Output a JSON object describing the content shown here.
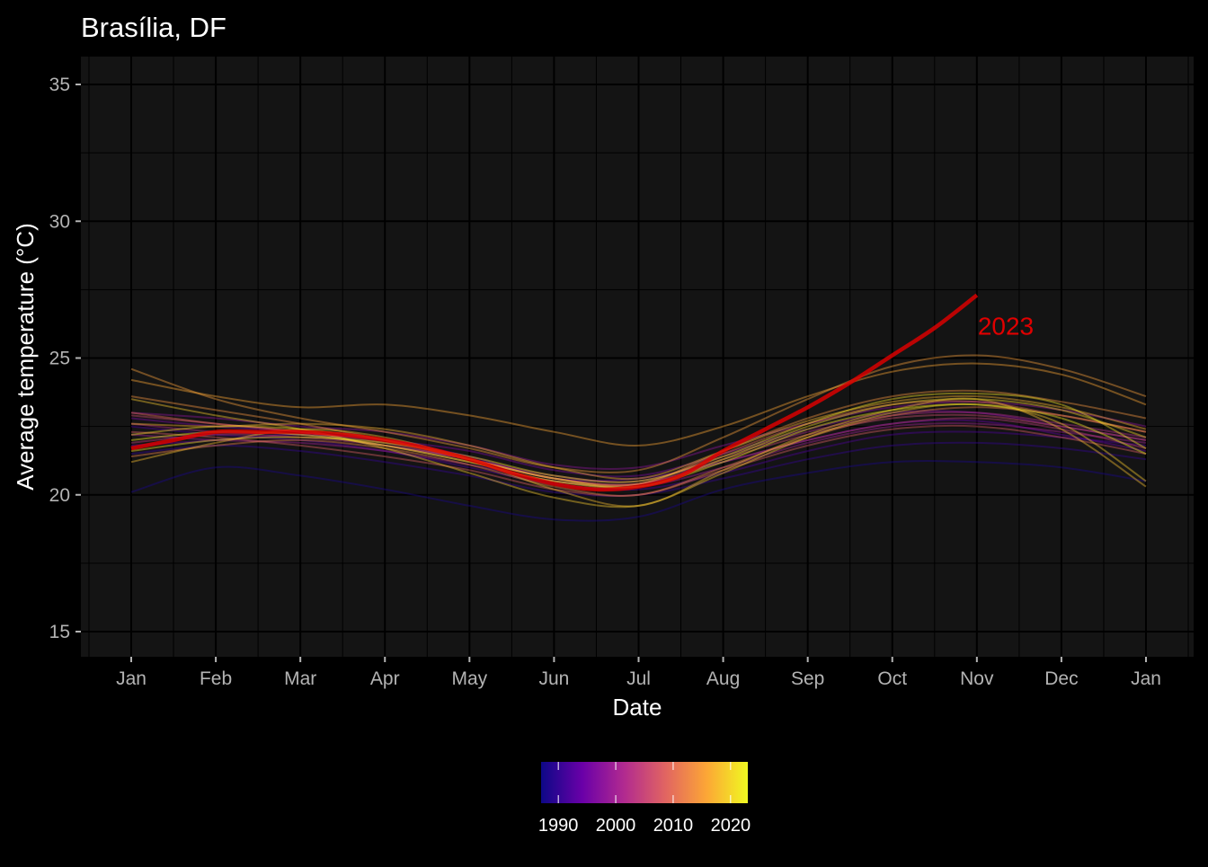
{
  "chart_data": {
    "type": "line",
    "title": "Brasília, DF",
    "xlabel": "Date",
    "ylabel": "Average temperature (°C)",
    "x_ticks": [
      "Jan",
      "Feb",
      "Mar",
      "Apr",
      "May",
      "Jun",
      "Jul",
      "Aug",
      "Sep",
      "Oct",
      "Nov",
      "Dec",
      "Jan"
    ],
    "x_range": [
      0,
      12
    ],
    "ylim": [
      14,
      36
    ],
    "y_ticks": [
      15,
      20,
      25,
      30,
      35
    ],
    "grid": true,
    "x_tick_positions": [
      0,
      1,
      2,
      3,
      4,
      5,
      6,
      7,
      8,
      9,
      10,
      11,
      12
    ],
    "highlight": {
      "label": "2023",
      "color": "#e00000",
      "x": [
        0,
        0.5,
        1,
        1.5,
        2,
        2.5,
        3,
        3.5,
        4,
        4.5,
        5,
        5.5,
        6,
        6.5,
        7,
        7.5,
        8,
        8.5,
        9,
        9.5,
        10
      ],
      "y": [
        21.7,
        22.0,
        22.3,
        22.3,
        22.3,
        22.2,
        22.0,
        21.7,
        21.3,
        20.8,
        20.4,
        20.2,
        20.3,
        20.7,
        21.6,
        22.4,
        23.2,
        24.1,
        25.1,
        26.1,
        27.3
      ]
    },
    "legend": {
      "type": "colorbar",
      "position": "bottom",
      "range": [
        1987,
        2023
      ],
      "ticks": [
        1990,
        2000,
        2010,
        2020
      ],
      "colors": [
        "#0d0887",
        "#6a00a8",
        "#b12a90",
        "#e16462",
        "#fca636",
        "#f0f921"
      ]
    },
    "years": {
      "x": [
        0,
        1,
        2,
        3,
        4,
        5,
        6,
        7,
        8,
        9,
        10,
        11,
        12
      ],
      "series": [
        {
          "year": 1988,
          "y": [
            20.1,
            21.0,
            20.7,
            20.2,
            19.6,
            19.1,
            19.2,
            20.2,
            20.8,
            21.2,
            21.2,
            21.0,
            20.5
          ]
        },
        {
          "year": 1990,
          "y": [
            21.5,
            21.8,
            21.6,
            21.2,
            20.7,
            20.1,
            20.0,
            20.6,
            21.3,
            21.8,
            21.9,
            21.7,
            21.3
          ]
        },
        {
          "year": 1992,
          "y": [
            22.5,
            22.2,
            22.0,
            21.6,
            21.0,
            20.4,
            20.2,
            20.8,
            21.6,
            22.2,
            22.3,
            22.1,
            21.8
          ]
        },
        {
          "year": 1994,
          "y": [
            21.8,
            22.0,
            22.2,
            22.0,
            21.4,
            20.6,
            20.6,
            21.2,
            22.0,
            22.6,
            22.7,
            22.2,
            21.6
          ]
        },
        {
          "year": 1996,
          "y": [
            22.8,
            22.5,
            22.3,
            22.0,
            21.6,
            20.9,
            20.7,
            21.5,
            22.4,
            23.0,
            23.0,
            22.5,
            22.0
          ]
        },
        {
          "year": 1998,
          "y": [
            23.0,
            22.8,
            22.5,
            22.3,
            21.8,
            21.1,
            21.0,
            21.8,
            22.6,
            23.2,
            23.4,
            23.1,
            22.5
          ]
        },
        {
          "year": 2000,
          "y": [
            22.2,
            22.0,
            21.9,
            21.6,
            21.1,
            20.5,
            20.3,
            21.0,
            21.9,
            22.5,
            22.6,
            22.3,
            21.9
          ]
        },
        {
          "year": 2002,
          "y": [
            22.6,
            22.3,
            22.2,
            21.8,
            21.3,
            20.7,
            20.5,
            21.4,
            22.3,
            22.9,
            23.0,
            22.6,
            22.1
          ]
        },
        {
          "year": 2004,
          "y": [
            21.9,
            22.2,
            22.1,
            21.8,
            21.3,
            20.6,
            20.4,
            21.2,
            22.0,
            22.6,
            22.8,
            22.4,
            21.7
          ]
        },
        {
          "year": 2006,
          "y": [
            22.9,
            22.6,
            22.3,
            21.9,
            21.3,
            20.6,
            20.4,
            21.3,
            22.2,
            22.8,
            22.9,
            22.5,
            22.0
          ]
        },
        {
          "year": 2008,
          "y": [
            22.3,
            22.1,
            21.8,
            21.4,
            20.9,
            20.2,
            20.0,
            20.9,
            21.8,
            22.4,
            22.5,
            22.1,
            21.5
          ]
        },
        {
          "year": 2010,
          "y": [
            23.0,
            22.6,
            22.3,
            21.8,
            21.2,
            20.5,
            20.4,
            21.5,
            22.6,
            23.3,
            23.4,
            22.9,
            22.3
          ]
        },
        {
          "year": 2012,
          "y": [
            21.4,
            21.8,
            22.0,
            21.7,
            21.1,
            20.3,
            20.0,
            21.0,
            22.1,
            22.9,
            23.2,
            22.9,
            22.3
          ]
        },
        {
          "year": 2014,
          "y": [
            23.6,
            23.1,
            22.6,
            22.0,
            21.3,
            20.6,
            20.4,
            21.6,
            22.8,
            23.6,
            23.8,
            23.4,
            22.8
          ]
        },
        {
          "year": 2015,
          "y": [
            24.6,
            23.5,
            22.8,
            22.3,
            21.7,
            21.0,
            20.9,
            22.1,
            23.5,
            24.7,
            25.1,
            24.6,
            23.6
          ]
        },
        {
          "year": 2016,
          "y": [
            24.2,
            23.6,
            23.2,
            23.3,
            22.9,
            22.3,
            21.8,
            22.5,
            23.6,
            24.5,
            24.8,
            24.4,
            23.3
          ]
        },
        {
          "year": 2017,
          "y": [
            22.6,
            22.5,
            22.6,
            22.4,
            21.8,
            21.0,
            20.6,
            21.6,
            22.7,
            23.4,
            23.6,
            23.2,
            22.4
          ]
        },
        {
          "year": 2018,
          "y": [
            21.2,
            21.9,
            22.4,
            22.1,
            21.3,
            20.2,
            19.6,
            20.9,
            22.2,
            23.1,
            23.5,
            22.4,
            20.3
          ]
        },
        {
          "year": 2019,
          "y": [
            23.5,
            22.9,
            22.4,
            21.7,
            20.8,
            19.9,
            19.6,
            20.8,
            22.1,
            23.0,
            23.3,
            22.6,
            20.5
          ]
        },
        {
          "year": 2020,
          "y": [
            22.2,
            22.5,
            22.4,
            22.0,
            21.3,
            20.6,
            20.3,
            21.3,
            22.5,
            23.3,
            23.5,
            23.1,
            22.1
          ]
        },
        {
          "year": 2021,
          "y": [
            21.6,
            22.0,
            22.1,
            21.9,
            21.4,
            20.7,
            20.5,
            21.4,
            22.6,
            23.5,
            23.7,
            23.3,
            21.7
          ]
        },
        {
          "year": 2022,
          "y": [
            22.0,
            22.3,
            22.2,
            21.8,
            21.2,
            20.5,
            20.3,
            21.2,
            22.4,
            23.1,
            23.3,
            22.8,
            21.5
          ]
        }
      ]
    }
  }
}
